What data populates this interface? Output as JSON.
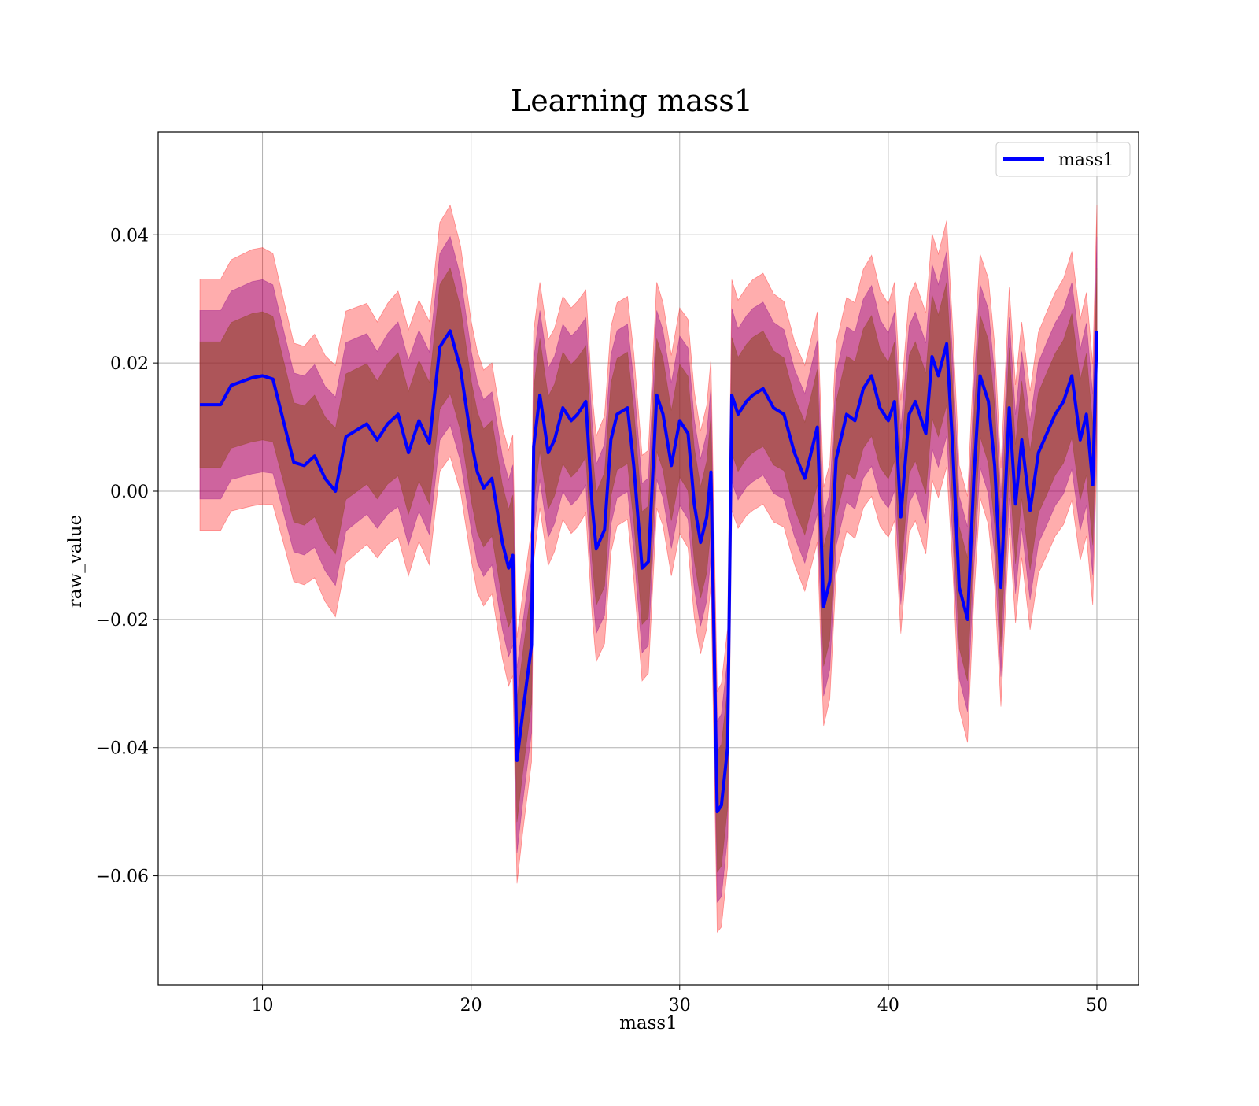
{
  "chart_data": {
    "type": "line",
    "title": "Learning mass1",
    "xlabel": "mass1",
    "ylabel": "raw_value",
    "xlim": [
      5,
      52
    ],
    "ylim": [
      -0.077,
      0.056
    ],
    "x_ticks": [
      10,
      20,
      30,
      40,
      50
    ],
    "x_tick_labels": [
      "10",
      "20",
      "30",
      "40",
      "50"
    ],
    "y_ticks": [
      0.04,
      0.02,
      0.0,
      -0.02,
      -0.04,
      -0.06
    ],
    "y_tick_labels": [
      "0.04",
      "0.02",
      "0.00",
      "−0.02",
      "−0.04",
      "−0.06"
    ],
    "grid": true,
    "legend": {
      "position": "top-right",
      "entries": [
        "mass1"
      ]
    },
    "colors": {
      "line": "#0000ff",
      "band_outer": "#ff0000",
      "band_middle": "#8b008b",
      "band_inner": "#8b4513"
    },
    "series": [
      {
        "name": "mass1",
        "x": [
          7.0,
          8.0,
          8.5,
          9.5,
          10.0,
          10.5,
          11.0,
          11.5,
          12.0,
          12.5,
          13.0,
          13.5,
          14.0,
          14.5,
          15.0,
          15.5,
          16.0,
          16.5,
          17.0,
          17.5,
          18.0,
          18.5,
          19.0,
          19.5,
          20.0,
          20.3,
          20.6,
          21.0,
          21.5,
          21.8,
          22.0,
          22.2,
          22.5,
          22.9,
          23.0,
          23.3,
          23.7,
          24.0,
          24.4,
          24.8,
          25.1,
          25.5,
          25.8,
          26.0,
          26.4,
          26.7,
          27.0,
          27.5,
          27.8,
          28.2,
          28.5,
          28.9,
          29.2,
          29.6,
          30.0,
          30.4,
          30.7,
          31.0,
          31.3,
          31.5,
          31.8,
          32.0,
          32.3,
          32.5,
          32.8,
          33.2,
          33.5,
          34.0,
          34.5,
          35.0,
          35.5,
          36.0,
          36.3,
          36.6,
          36.9,
          37.2,
          37.5,
          38.0,
          38.4,
          38.8,
          39.2,
          39.6,
          40.0,
          40.3,
          40.6,
          41.0,
          41.3,
          41.8,
          42.1,
          42.4,
          42.8,
          43.1,
          43.4,
          43.8,
          44.1,
          44.4,
          44.8,
          45.1,
          45.4,
          45.8,
          46.1,
          46.4,
          46.8,
          47.2,
          47.6,
          48.0,
          48.4,
          48.8,
          49.2,
          49.5,
          49.8,
          50.0
        ],
        "values": [
          0.0135,
          0.0135,
          0.0165,
          0.0177,
          0.018,
          0.0175,
          0.011,
          0.0045,
          0.004,
          0.0055,
          0.002,
          0.0,
          0.0085,
          0.0095,
          0.0105,
          0.008,
          0.0105,
          0.012,
          0.006,
          0.011,
          0.0075,
          0.0225,
          0.025,
          0.019,
          0.008,
          0.003,
          0.0005,
          0.002,
          -0.008,
          -0.012,
          -0.01,
          -0.042,
          -0.034,
          -0.024,
          0.007,
          0.015,
          0.006,
          0.008,
          0.013,
          0.011,
          0.012,
          0.014,
          -0.002,
          -0.009,
          -0.006,
          0.008,
          0.012,
          0.013,
          0.004,
          -0.012,
          -0.011,
          0.015,
          0.012,
          0.004,
          0.011,
          0.009,
          -0.002,
          -0.008,
          -0.004,
          0.003,
          -0.05,
          -0.049,
          -0.04,
          0.015,
          0.012,
          0.014,
          0.015,
          0.016,
          0.013,
          0.012,
          0.006,
          0.002,
          0.006,
          0.01,
          -0.018,
          -0.014,
          0.005,
          0.012,
          0.011,
          0.016,
          0.018,
          0.013,
          0.011,
          0.014,
          -0.004,
          0.012,
          0.014,
          0.009,
          0.021,
          0.018,
          0.023,
          0.006,
          -0.015,
          -0.02,
          0.002,
          0.018,
          0.014,
          0.004,
          -0.015,
          0.013,
          -0.002,
          0.008,
          -0.003,
          0.006,
          0.009,
          0.012,
          0.014,
          0.018,
          0.008,
          0.012,
          0.001,
          0.025
        ],
        "std": [
          0.0098,
          0.0098,
          0.0098,
          0.01,
          0.01,
          0.0098,
          0.0095,
          0.0093,
          0.0093,
          0.0095,
          0.0096,
          0.0098,
          0.0098,
          0.0096,
          0.0094,
          0.0092,
          0.0094,
          0.0096,
          0.0096,
          0.0094,
          0.0095,
          0.0097,
          0.0098,
          0.0096,
          0.0093,
          0.0094,
          0.0092,
          0.009,
          0.009,
          0.0092,
          0.0094,
          0.0096,
          0.0093,
          0.0091,
          0.009,
          0.0088,
          0.0088,
          0.0087,
          0.0087,
          0.0088,
          0.0088,
          0.0087,
          0.0086,
          0.0088,
          0.0089,
          0.0088,
          0.0087,
          0.0087,
          0.0088,
          0.0088,
          0.0087,
          0.0088,
          0.0087,
          0.0086,
          0.0088,
          0.0089,
          0.0088,
          0.0087,
          0.0087,
          0.0088,
          0.0094,
          0.0095,
          0.0093,
          0.009,
          0.0089,
          0.0089,
          0.009,
          0.009,
          0.0089,
          0.0088,
          0.0087,
          0.0088,
          0.0089,
          0.009,
          0.0093,
          0.0092,
          0.009,
          0.0091,
          0.0092,
          0.0093,
          0.0094,
          0.0092,
          0.0091,
          0.0093,
          0.0091,
          0.0092,
          0.0093,
          0.0094,
          0.0096,
          0.0095,
          0.0096,
          0.0094,
          0.0095,
          0.0096,
          0.0094,
          0.0095,
          0.0096,
          0.0094,
          0.0093,
          0.0094,
          0.0093,
          0.0092,
          0.0093,
          0.0094,
          0.0095,
          0.0095,
          0.0096,
          0.0097,
          0.0094,
          0.0095,
          0.0094,
          0.0098
        ]
      }
    ]
  }
}
